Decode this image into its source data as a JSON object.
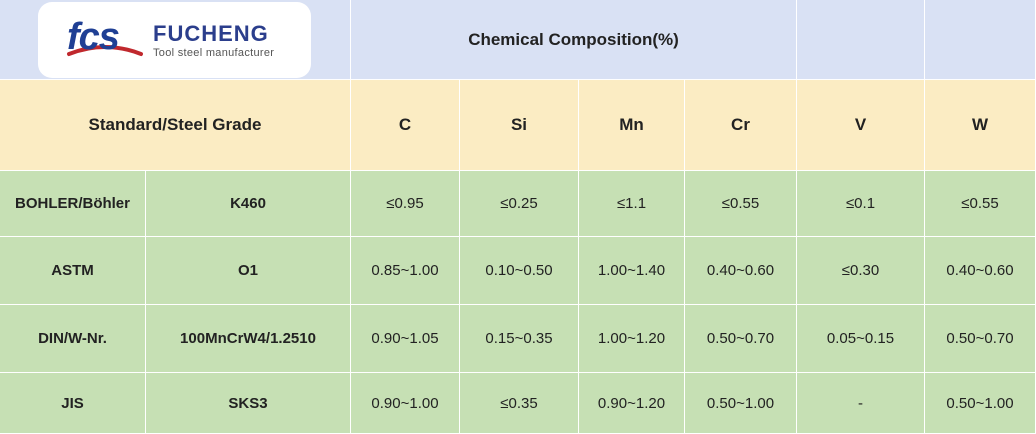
{
  "logo": {
    "mark": "fcs",
    "brand": "FUCHENG",
    "tagline": "Tool steel manufacturer"
  },
  "header": {
    "title": "Chemical Composition(%)",
    "grade_label": "Standard/Steel Grade",
    "elements": [
      "C",
      "Si",
      "Mn",
      "Cr",
      "V",
      "W"
    ]
  },
  "rows": [
    {
      "standard": "BOHLER/Böhler",
      "grade": "K460",
      "values": [
        "≤0.95",
        "≤0.25",
        "≤1.1",
        "≤0.55",
        "≤0.1",
        "≤0.55"
      ]
    },
    {
      "standard": "ASTM",
      "grade": "O1",
      "values": [
        "0.85~1.00",
        "0.10~0.50",
        "1.00~1.40",
        "0.40~0.60",
        "≤0.30",
        "0.40~0.60"
      ]
    },
    {
      "standard": "DIN/W-Nr.",
      "grade": "100MnCrW4/1.2510",
      "values": [
        "0.90~1.05",
        "0.15~0.35",
        "1.00~1.20",
        "0.50~0.70",
        "0.05~0.15",
        "0.50~0.70"
      ]
    },
    {
      "standard": "JIS",
      "grade": "SKS3",
      "values": [
        "0.90~1.00",
        "≤0.35",
        "0.90~1.20",
        "0.50~1.00",
        "-",
        "0.50~1.00"
      ]
    }
  ],
  "colors": {
    "header_top": "#d9e1f4",
    "header_mid": "#fbecc3",
    "body": "#c6e0b4",
    "brand": "#2b3e8c",
    "logo_accent": "#c0282d"
  }
}
